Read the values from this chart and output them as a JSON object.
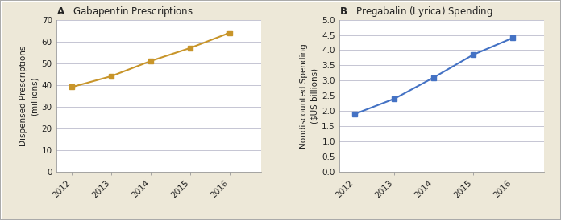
{
  "panel_A": {
    "title": "Gabapentin Prescriptions",
    "label": "A",
    "x": [
      2012,
      2013,
      2014,
      2015,
      2016
    ],
    "y": [
      39.0,
      44.0,
      51.0,
      57.0,
      64.0
    ],
    "ylabel_line1": "Dispensed Prescriptions",
    "ylabel_line2": "(millions)",
    "ylim": [
      0,
      70
    ],
    "yticks": [
      0,
      10,
      20,
      30,
      40,
      50,
      60,
      70
    ],
    "color": "#C8952A",
    "marker": "s",
    "markersize": 5
  },
  "panel_B": {
    "title": "Pregabalin (Lyrica) Spending",
    "label": "B",
    "x": [
      2012,
      2013,
      2014,
      2015,
      2016
    ],
    "y": [
      1.9,
      2.4,
      3.1,
      3.85,
      4.4
    ],
    "ylabel_line1": "Nondiscounted Spending",
    "ylabel_line2": "($US billions)",
    "ylim": [
      0,
      5.0
    ],
    "yticks": [
      0.0,
      0.5,
      1.0,
      1.5,
      2.0,
      2.5,
      3.0,
      3.5,
      4.0,
      4.5,
      5.0
    ],
    "color": "#4472C4",
    "marker": "s",
    "markersize": 5
  },
  "background_color": "#EDE8D8",
  "plot_bg_color": "#FFFFFF",
  "grid_color": "#BBBBCC",
  "font_color": "#222222",
  "title_fontsize": 8.5,
  "tick_fontsize": 7.5,
  "axis_label_fontsize": 7.5,
  "border_color": "#AAAAAA"
}
